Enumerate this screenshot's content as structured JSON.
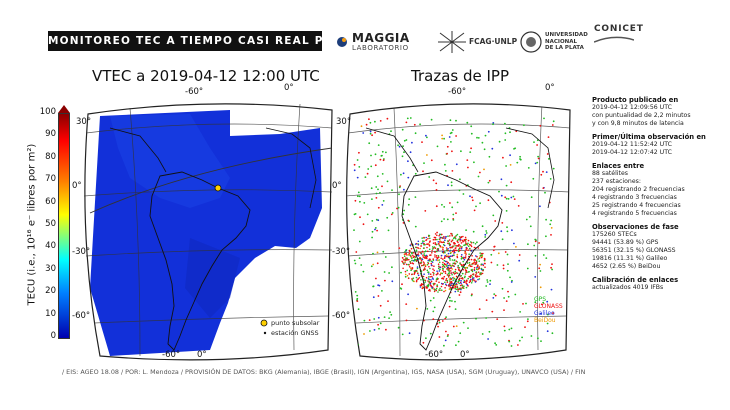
{
  "header": {
    "banner": "MONITOREO TEC A TIEMPO CASI REAL POR",
    "logos": {
      "maggia_name": "MAGGIA",
      "maggia_sub": "LABORATORIO",
      "fcag": "FCAG·UNLP",
      "unlp": [
        "UNIVERSIDAD",
        "NACIONAL",
        "DE LA PLATA"
      ],
      "conicet": "CONICET"
    }
  },
  "vtec_panel": {
    "title": "VTEC a 2019-04-12 12:00 UTC",
    "colorbar": {
      "label": "TECU (i.e., 10¹⁶ e⁻ libres por m²)",
      "ticks": [
        "100",
        "90",
        "80",
        "70",
        "60",
        "50",
        "40",
        "30",
        "20",
        "10",
        "0"
      ]
    },
    "lon_labels": [
      "-60°",
      "0°",
      "-60°",
      "0°"
    ],
    "lat_labels": [
      "30°",
      "0°",
      "-30°",
      "-60°"
    ],
    "legend": {
      "subsolar": "punto subsolar",
      "station": "estación GNSS"
    }
  },
  "ipp_panel": {
    "title": "Trazas de IPP",
    "lon_labels": [
      "-60°",
      "0°",
      "-60°",
      "0°"
    ],
    "lat_labels": [
      "30°",
      "0°",
      "-30°",
      "-60°"
    ],
    "systems": [
      {
        "name": "GPS",
        "color": "#22bb22"
      },
      {
        "name": "GLONASS",
        "color": "#ee1111"
      },
      {
        "name": "Galileo",
        "color": "#2233dd"
      },
      {
        "name": "BeiDou",
        "color": "#ee9900"
      }
    ]
  },
  "info": {
    "published": {
      "heading": "Producto publicado en",
      "lines": [
        "2019-04-12 12:09:56 UTC",
        "con puntualidad de 2,2 minutos",
        "y con 9,8 minutos de latencia"
      ]
    },
    "observation": {
      "heading": "Primer/Última observación en",
      "lines": [
        "2019-04-12 11:52:42 UTC",
        "2019-04-12 12:07:42 UTC"
      ]
    },
    "links": {
      "heading": "Enlaces entre",
      "lines": [
        "88 satélites",
        "237 estaciones:",
        "204 registrando 2 frecuencias",
        "4 registrando 3 frecuencias",
        "25 registrando 4 frecuencias",
        "4 registrando 5 frecuencias"
      ]
    },
    "phase": {
      "heading": "Observaciones de fase",
      "lines": [
        "175260 STECs",
        "94441 (53.89 %) GPS",
        "56351 (32.15 %) GLONASS",
        "19816 (11.31 %) Galileo",
        "4652 (2.65 %) BeiDou"
      ]
    },
    "calibration": {
      "heading": "Calibración de enlaces",
      "lines": [
        "actualizados 4019 IFBs"
      ]
    }
  },
  "footer": "/ EIS: AGEO 18.08 / POR: L. Mendoza / PROVISIÓN DE DATOS: BKG (Alemania), IBGE (Brasil), IGN (Argentina), IGS, NASA (USA), SGM (Uruguay), UNAVCO (USA) / FIN"
}
